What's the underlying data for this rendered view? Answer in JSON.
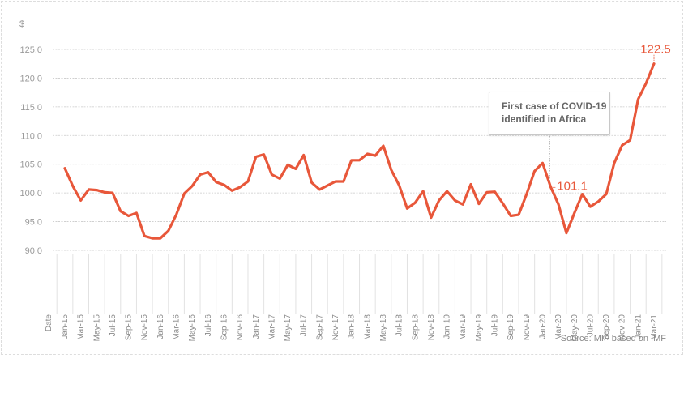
{
  "chart_data": {
    "type": "line",
    "ylabel": "$",
    "xlabel": "Date",
    "ylim": [
      90,
      125
    ],
    "yticks": [
      "90.0",
      "95.0",
      "100.0",
      "105.0",
      "110.0",
      "115.0",
      "120.0",
      "125.0"
    ],
    "grid": true,
    "color": "#e8573a",
    "x": [
      "Jan-15",
      "Feb-15",
      "Mar-15",
      "Apr-15",
      "May-15",
      "Jun-15",
      "Jul-15",
      "Aug-15",
      "Sep-15",
      "Oct-15",
      "Nov-15",
      "Dec-15",
      "Jan-16",
      "Feb-16",
      "Mar-16",
      "Apr-16",
      "May-16",
      "Jun-16",
      "Jul-16",
      "Aug-16",
      "Sep-16",
      "Oct-16",
      "Nov-16",
      "Dec-16",
      "Jan-17",
      "Feb-17",
      "Mar-17",
      "Apr-17",
      "May-17",
      "Jun-17",
      "Jul-17",
      "Aug-17",
      "Sep-17",
      "Oct-17",
      "Nov-17",
      "Dec-17",
      "Jan-18",
      "Feb-18",
      "Mar-18",
      "Apr-18",
      "May-18",
      "Jun-18",
      "Jul-18",
      "Aug-18",
      "Sep-18",
      "Oct-18",
      "Nov-18",
      "Dec-18",
      "Jan-19",
      "Feb-19",
      "Mar-19",
      "Apr-19",
      "May-19",
      "Jun-19",
      "Jul-19",
      "Aug-19",
      "Sep-19",
      "Oct-19",
      "Nov-19",
      "Dec-19",
      "Jan-20",
      "Feb-20",
      "Mar-20",
      "Apr-20",
      "May-20",
      "Jun-20",
      "Jul-20",
      "Aug-20",
      "Sep-20",
      "Oct-20",
      "Nov-20",
      "Dec-20",
      "Jan-21",
      "Feb-21",
      "Mar-21"
    ],
    "values": [
      104.3,
      101.2,
      98.7,
      100.6,
      100.5,
      100.1,
      100.0,
      96.8,
      96.0,
      96.5,
      92.5,
      92.1,
      92.1,
      93.4,
      96.2,
      99.9,
      101.2,
      103.2,
      103.6,
      101.9,
      101.4,
      100.4,
      101.0,
      102.0,
      106.3,
      106.7,
      103.2,
      102.5,
      104.9,
      104.2,
      106.6,
      101.8,
      100.6,
      101.3,
      102.0,
      102.0,
      105.7,
      105.7,
      106.8,
      106.5,
      108.2,
      104.0,
      101.3,
      97.3,
      98.3,
      100.3,
      95.7,
      98.7,
      100.3,
      98.7,
      98.0,
      101.5,
      98.1,
      100.1,
      100.2,
      98.2,
      96.0,
      96.2,
      99.8,
      103.8,
      105.2,
      101.1,
      98.0,
      93.0,
      96.5,
      99.8,
      97.6,
      98.5,
      99.8,
      105.2,
      108.3,
      109.2,
      116.3,
      119.1,
      122.5
    ],
    "xtick_labels": [
      "Jan-15",
      "Mar-15",
      "May-15",
      "Jul-15",
      "Sep-15",
      "Nov-15",
      "Jan-16",
      "Mar-16",
      "May-16",
      "Jul-16",
      "Sep-16",
      "Nov-16",
      "Jan-17",
      "Mar-17",
      "May-17",
      "Jul-17",
      "Sep-17",
      "Nov-17",
      "Jan-18",
      "Mar-18",
      "May-18",
      "Jul-18",
      "Sep-18",
      "Nov-18",
      "Jan-19",
      "Mar-19",
      "May-19",
      "Jul-19",
      "Sep-19",
      "Nov-19",
      "Jan-20",
      "Mar-20",
      "May-20",
      "Jul-20",
      "Sep-20",
      "Nov-20",
      "Jan-21",
      "Mar-21"
    ],
    "data_labels": [
      {
        "x": "Feb-20",
        "text": "101.1"
      },
      {
        "x": "Mar-21",
        "text": "122.5"
      }
    ],
    "annotation": {
      "x": "Feb-20",
      "text_line1": "First case of COVID-19",
      "text_line2": "identified in Africa"
    }
  },
  "source": "Source: MIF based on IMF"
}
